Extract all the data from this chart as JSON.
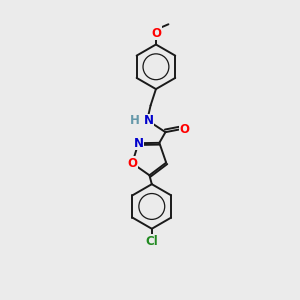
{
  "background_color": "#ebebeb",
  "bond_color": "#1a1a1a",
  "bond_width": 1.4,
  "atom_colors": {
    "N": "#0000cc",
    "O": "#ff0000",
    "Cl": "#228B22",
    "C": "#1a1a1a",
    "H_N": "#6699aa"
  },
  "font_size_atom": 8.5,
  "font_size_methoxy": 7.5
}
